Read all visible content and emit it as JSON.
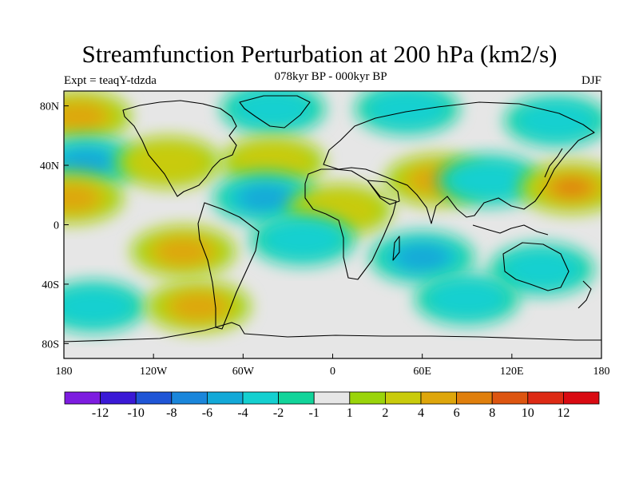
{
  "title": "Streamfunction Perturbation at 200 hPa (km2/s)",
  "subtitle": "078kyr BP - 000kyr BP",
  "left_label": "Expt = teaqY-tdzda",
  "right_label": "DJF",
  "lat_labels": [
    "80N",
    "40N",
    "0",
    "40S",
    "80S"
  ],
  "lon_labels": [
    "180",
    "120W",
    "60W",
    "0",
    "60E",
    "120E",
    "180"
  ],
  "colorbar": {
    "labels": [
      "-12",
      "-10",
      "-8",
      "-6",
      "-4",
      "-2",
      "-1",
      "1",
      "2",
      "4",
      "6",
      "8",
      "10",
      "12"
    ],
    "colors": [
      "#7d1ce0",
      "#3a19d6",
      "#1f55d6",
      "#1a86db",
      "#13a9d8",
      "#14d0d0",
      "#11d49a",
      "#e6e6e6",
      "#9ad40a",
      "#c9cb0b",
      "#dea60b",
      "#e07f0c",
      "#dd5510",
      "#dd2a14",
      "#d90a12"
    ]
  },
  "chart_data": {
    "type": "heatmap",
    "title": "Streamfunction Perturbation at 200 hPa (km2/s)",
    "subtitle": "078kyr BP - 000kyr BP",
    "experiment": "Expt = teaqY-tdzda",
    "season": "DJF",
    "units": "km2/s",
    "x_range": [
      -180,
      180
    ],
    "y_range": [
      -90,
      90
    ],
    "levels": [
      -12,
      -10,
      -8,
      -6,
      -4,
      -2,
      -1,
      1,
      2,
      4,
      6,
      8,
      10,
      12
    ],
    "regions": [
      {
        "name": "arctic-low",
        "lon": -40,
        "lat": 78,
        "value": -3
      },
      {
        "name": "siberia-low",
        "lon": 50,
        "lat": 78,
        "value": -3
      },
      {
        "name": "nw-pacific-low",
        "lon": 150,
        "lat": 70,
        "value": -2
      },
      {
        "name": "alaska-high",
        "lon": -170,
        "lat": 73,
        "value": 4
      },
      {
        "name": "n-pacific-low",
        "lon": -165,
        "lat": 42,
        "value": -4
      },
      {
        "name": "e-pacific-high",
        "lon": -175,
        "lat": 18,
        "value": 4
      },
      {
        "name": "n-america-high",
        "lon": -110,
        "lat": 42,
        "value": 2
      },
      {
        "name": "nw-atlantic-high",
        "lon": -40,
        "lat": 42,
        "value": 2
      },
      {
        "name": "trop-atlantic-low",
        "lon": -45,
        "lat": 18,
        "value": -4
      },
      {
        "name": "ne-africa-high",
        "lon": 70,
        "lat": 30,
        "value": 4
      },
      {
        "name": "n-africa-high",
        "lon": 5,
        "lat": 10,
        "value": 2
      },
      {
        "name": "e-asia-low",
        "lon": 105,
        "lat": 30,
        "value": -3
      },
      {
        "name": "w-pacific-high",
        "lon": 160,
        "lat": 25,
        "value": 6
      },
      {
        "name": "s-indian-low",
        "lon": 60,
        "lat": -22,
        "value": -4
      },
      {
        "name": "s-america-high",
        "lon": -100,
        "lat": -18,
        "value": 4
      },
      {
        "name": "s-atlantic-low",
        "lon": -20,
        "lat": -10,
        "value": -2
      },
      {
        "name": "australia-low",
        "lon": 140,
        "lat": -30,
        "value": -3
      },
      {
        "name": "s-pacific-low",
        "lon": -160,
        "lat": -55,
        "value": -3
      },
      {
        "name": "southern-high",
        "lon": -90,
        "lat": -55,
        "value": 4
      },
      {
        "name": "s-ocean-low",
        "lon": 90,
        "lat": -50,
        "value": -2
      }
    ]
  }
}
